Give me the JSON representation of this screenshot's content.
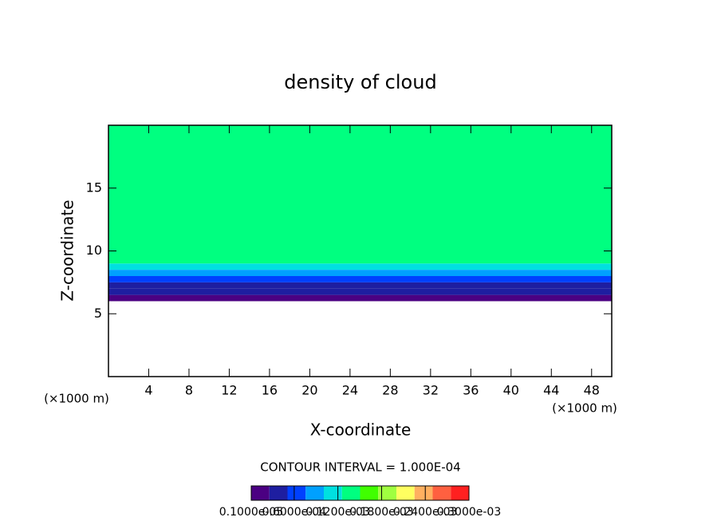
{
  "chart_data": {
    "type": "shaded-profile",
    "title": "density of cloud",
    "x_label": "X-coordinate",
    "y_label": "Z-coordinate",
    "x_unit": "(×1000 m)",
    "y_unit": "(×1000 m)",
    "contour_note": "CONTOUR INTERVAL = 1.000E-04",
    "xlim": [
      0,
      50
    ],
    "xticks": [
      4,
      8,
      12,
      16,
      20,
      24,
      28,
      32,
      36,
      40,
      44,
      48
    ],
    "ylim": [
      0,
      20
    ],
    "yticks": [
      5,
      10,
      15
    ],
    "z_bins": [
      6,
      6.5,
      7,
      7.5,
      8,
      8.5,
      9,
      10,
      12,
      14,
      16,
      18,
      20
    ],
    "values": [
      1e-05,
      3e-05,
      5e-05,
      7e-05,
      0.0001,
      0.00012,
      0.00013,
      0.00014,
      0.00015,
      0.00015,
      0.00014,
      0.00013
    ],
    "colorbar": {
      "lim": [
        1e-06,
        0.0003
      ],
      "colors": [
        "#4b0082",
        "#1e1ea0",
        "#0040ff",
        "#00a0ff",
        "#00e0e0",
        "#00ff80",
        "#40ff00",
        "#a0ff40",
        "#ffff60",
        "#ffb060",
        "#ff6040",
        "#ff2020"
      ],
      "ticks": [
        {
          "value": 1e-06,
          "label": "0.1000e-05"
        },
        {
          "value": 6e-05,
          "label": "0.6000e-04"
        },
        {
          "value": 0.00012,
          "label": "0.1200e-03"
        },
        {
          "value": 0.00018,
          "label": "0.1800e-03"
        },
        {
          "value": 0.00024,
          "label": "0.2400e-03"
        },
        {
          "value": 0.0003,
          "label": "0.3000e-03"
        }
      ]
    }
  }
}
